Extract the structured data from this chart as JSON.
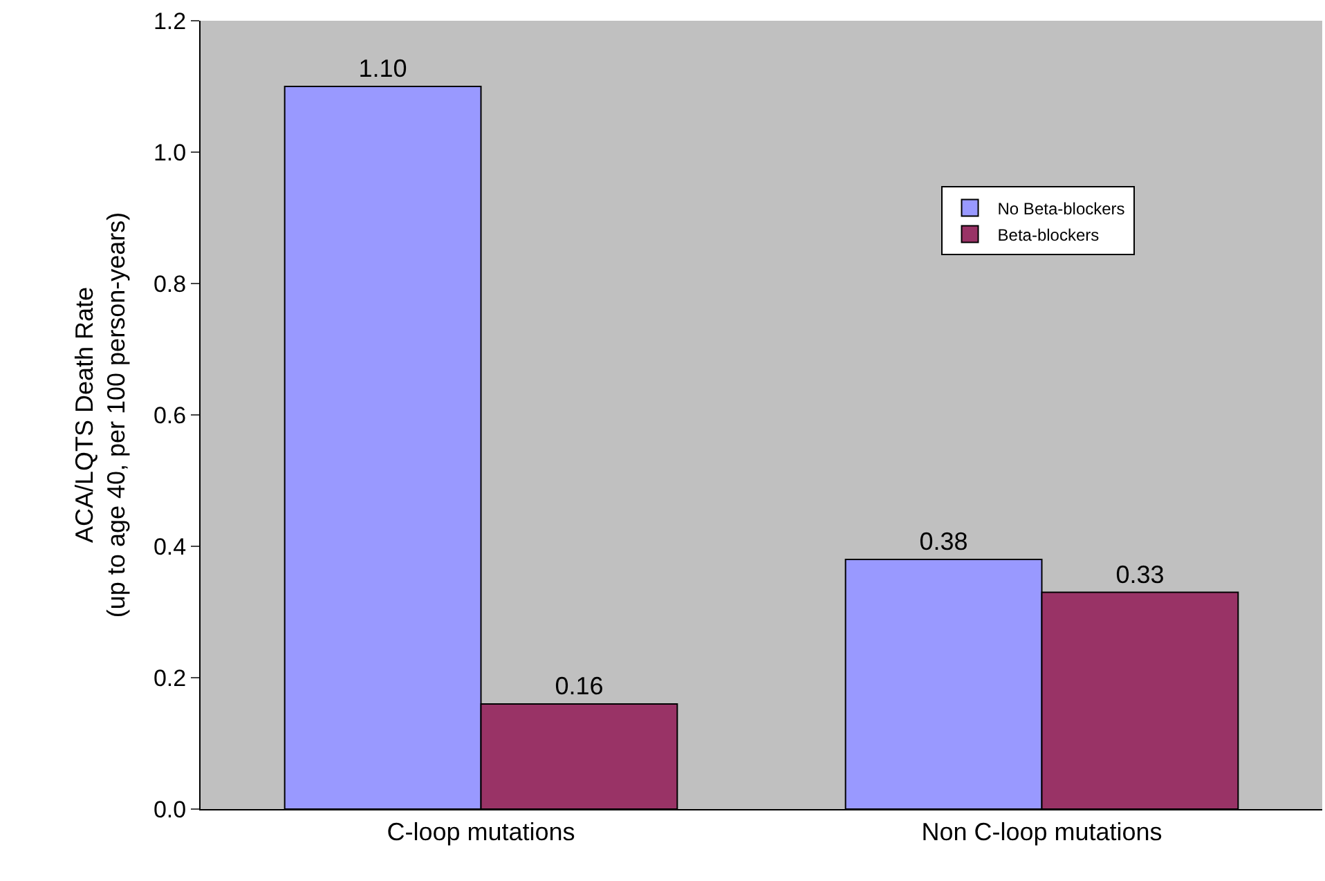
{
  "chart_data": {
    "type": "bar",
    "ylabel": "ACA/LQTS Death Rate\n(up to age 40, per 100 person-years)",
    "categories": [
      "C-loop mutations",
      "Non C-loop mutations"
    ],
    "series": [
      {
        "name": "No Beta-blockers",
        "color": "#9999ff",
        "values": [
          1.1,
          0.38
        ],
        "value_labels": [
          "1.10",
          "0.38"
        ]
      },
      {
        "name": "Beta-blockers",
        "color": "#993366",
        "values": [
          0.16,
          0.33
        ],
        "value_labels": [
          "0.16",
          "0.33"
        ]
      }
    ],
    "ylim": [
      0,
      1.2
    ],
    "yticks": [
      {
        "value": 0,
        "label": "0.0"
      },
      {
        "value": 0.2,
        "label": "0.2"
      },
      {
        "value": 0.4,
        "label": "0.4"
      },
      {
        "value": 0.6,
        "label": "0.6"
      },
      {
        "value": 0.8,
        "label": "0.8"
      },
      {
        "value": 1.0,
        "label": "1.0"
      },
      {
        "value": 1.2,
        "label": "1.2"
      }
    ],
    "grid": false,
    "legend": "right"
  }
}
